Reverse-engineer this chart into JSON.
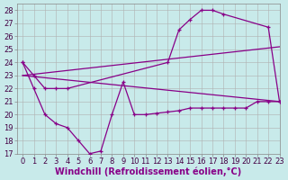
{
  "background_color": "#c8eaea",
  "grid_color": "#b0b0b0",
  "line_color": "#880088",
  "xlim": [
    -0.5,
    23
  ],
  "ylim": [
    17,
    28.5
  ],
  "xlabel": "Windchill (Refroidissement éolien,°C)",
  "xlabel_fontsize": 7,
  "xticks": [
    0,
    1,
    2,
    3,
    4,
    5,
    6,
    7,
    8,
    9,
    10,
    11,
    12,
    13,
    14,
    15,
    16,
    17,
    18,
    19,
    20,
    21,
    22,
    23
  ],
  "yticks": [
    17,
    18,
    19,
    20,
    21,
    22,
    23,
    24,
    25,
    26,
    27,
    28
  ],
  "tick_fontsize": 6,
  "line1_x": [
    0,
    1,
    2,
    3,
    4,
    13,
    14,
    15,
    16,
    17,
    18,
    22,
    23
  ],
  "line1_y": [
    24,
    23,
    22,
    22,
    22,
    24.0,
    26.5,
    27.3,
    28.0,
    28.0,
    27.7,
    26.7,
    21.0
  ],
  "line2_x": [
    0,
    23
  ],
  "line2_y": [
    23.0,
    25.2
  ],
  "line3_x": [
    0,
    23
  ],
  "line3_y": [
    23.0,
    21.0
  ],
  "line4_x": [
    0,
    1,
    2,
    3,
    4,
    5,
    6,
    7,
    8,
    9,
    10,
    11,
    12,
    13,
    14,
    15,
    16,
    17,
    18,
    19,
    20,
    21,
    22,
    23
  ],
  "line4_y": [
    24.0,
    22.0,
    20.0,
    19.3,
    19.0,
    18.0,
    17.0,
    17.2,
    20.0,
    22.5,
    20.0,
    20.0,
    20.1,
    20.2,
    20.3,
    20.5,
    20.5,
    20.5,
    20.5,
    20.5,
    20.5,
    21.0,
    21.0,
    21.0
  ]
}
